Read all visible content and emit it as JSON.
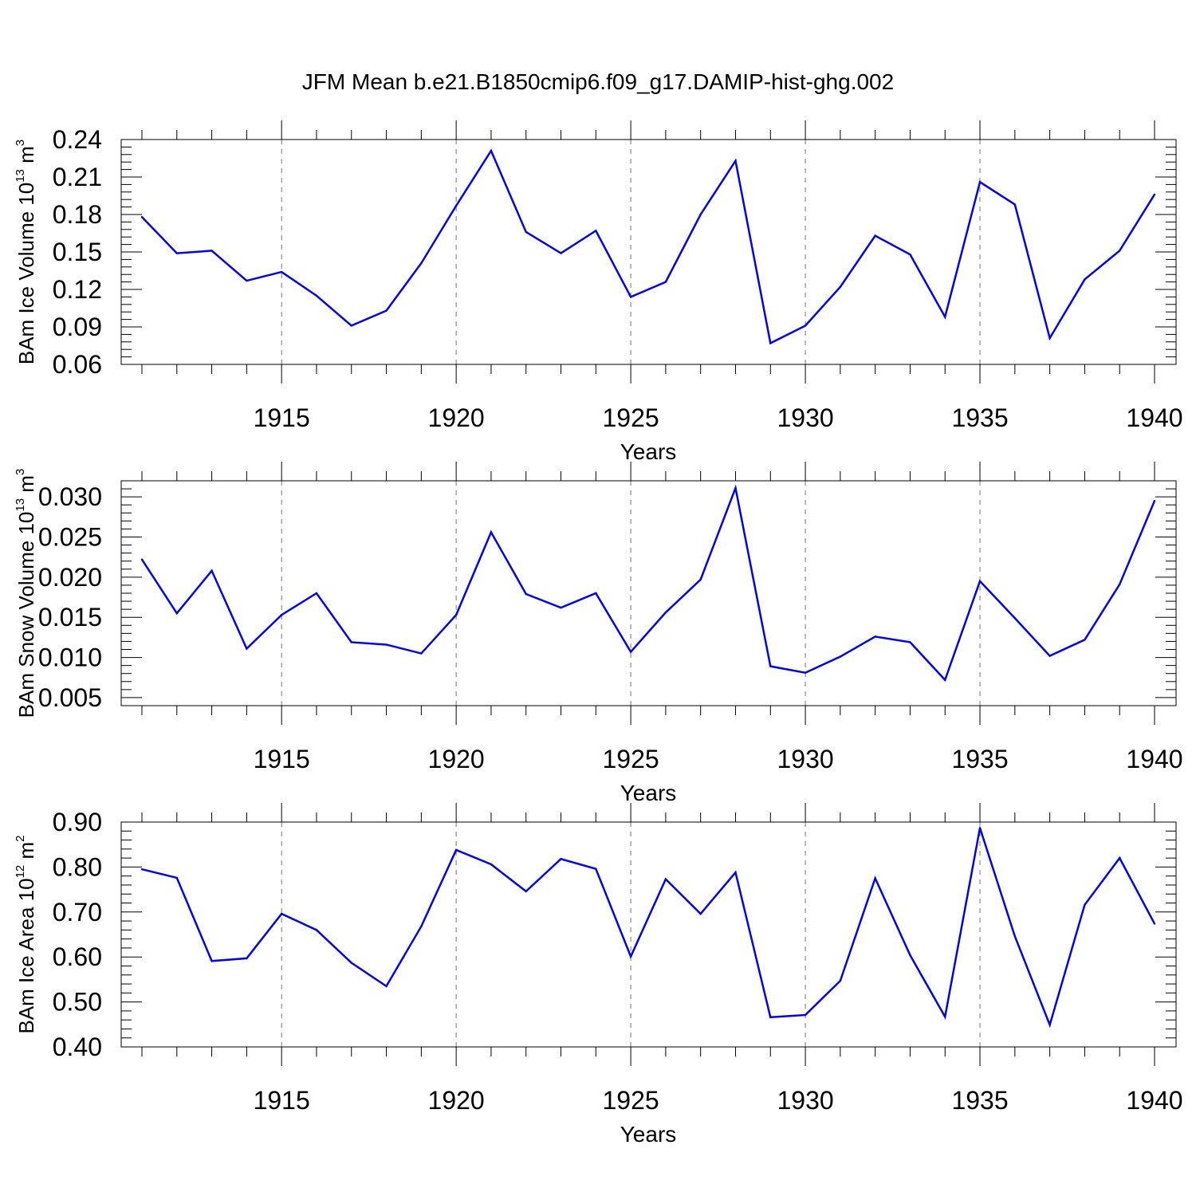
{
  "title": "JFM Mean b.e21.B1850cmip6.f09_g17.DAMIP-hist-ghg.002",
  "line_color": "#0000ff",
  "chart_data": [
    {
      "type": "line",
      "ylabel": "BAm Ice Volume 10",
      "ylabel_exp": "13",
      "ylabel_unit": " m",
      "ylabel_unit_exp": "3",
      "xlabel": "Years",
      "xlim": [
        1911,
        1940
      ],
      "ylim": [
        0.06,
        0.24
      ],
      "yticks": [
        0.06,
        0.09,
        0.12,
        0.15,
        0.18,
        0.21,
        0.24
      ],
      "ytick_labels": [
        "0.06",
        "0.09",
        "0.12",
        "0.15",
        "0.18",
        "0.21",
        "0.24"
      ],
      "xticks": [
        1915,
        1920,
        1925,
        1930,
        1935,
        1940
      ],
      "xtick_labels": [
        "1915",
        "1920",
        "1925",
        "1930",
        "1935",
        "1940"
      ],
      "x": [
        1911,
        1912,
        1913,
        1914,
        1915,
        1916,
        1917,
        1918,
        1919,
        1920,
        1921,
        1922,
        1923,
        1924,
        1925,
        1926,
        1927,
        1928,
        1929,
        1930,
        1931,
        1932,
        1933,
        1934,
        1935,
        1936,
        1937,
        1938,
        1939,
        1940
      ],
      "values": [
        0.178,
        0.149,
        0.151,
        0.127,
        0.134,
        0.115,
        0.091,
        0.103,
        0.141,
        0.187,
        0.231,
        0.166,
        0.149,
        0.167,
        0.114,
        0.126,
        0.18,
        0.223,
        0.077,
        0.091,
        0.122,
        0.163,
        0.148,
        0.098,
        0.206,
        0.188,
        0.081,
        0.128,
        0.151,
        0.196
      ]
    },
    {
      "type": "line",
      "ylabel": "BAm Snow Volume 10",
      "ylabel_exp": "13",
      "ylabel_unit": " m",
      "ylabel_unit_exp": "3",
      "xlabel": "Years",
      "xlim": [
        1911,
        1940
      ],
      "ylim": [
        0.004,
        0.032
      ],
      "yticks": [
        0.005,
        0.01,
        0.015,
        0.02,
        0.025,
        0.03
      ],
      "ytick_labels": [
        "0.005",
        "0.010",
        "0.015",
        "0.020",
        "0.025",
        "0.030"
      ],
      "xticks": [
        1915,
        1920,
        1925,
        1930,
        1935,
        1940
      ],
      "xtick_labels": [
        "1915",
        "1920",
        "1925",
        "1930",
        "1935",
        "1940"
      ],
      "x": [
        1911,
        1912,
        1913,
        1914,
        1915,
        1916,
        1917,
        1918,
        1919,
        1920,
        1921,
        1922,
        1923,
        1924,
        1925,
        1926,
        1927,
        1928,
        1929,
        1930,
        1931,
        1932,
        1933,
        1934,
        1935,
        1936,
        1937,
        1938,
        1939,
        1940
      ],
      "values": [
        0.0222,
        0.0155,
        0.0208,
        0.0111,
        0.0153,
        0.018,
        0.0119,
        0.0116,
        0.0105,
        0.0153,
        0.0256,
        0.0179,
        0.0162,
        0.018,
        0.0107,
        0.0156,
        0.0197,
        0.0311,
        0.0089,
        0.0081,
        0.0101,
        0.0126,
        0.0119,
        0.0072,
        0.0195,
        0.0149,
        0.0102,
        0.0122,
        0.0191,
        0.0295
      ]
    },
    {
      "type": "line",
      "ylabel": "BAm Ice Area 10",
      "ylabel_exp": "12",
      "ylabel_unit": " m",
      "ylabel_unit_exp": "2",
      "xlabel": "Years",
      "xlim": [
        1911,
        1940
      ],
      "ylim": [
        0.4,
        0.9
      ],
      "yticks": [
        0.4,
        0.5,
        0.6,
        0.7,
        0.8,
        0.9
      ],
      "ytick_labels": [
        "0.40",
        "0.50",
        "0.60",
        "0.70",
        "0.80",
        "0.90"
      ],
      "xticks": [
        1915,
        1920,
        1925,
        1930,
        1935,
        1940
      ],
      "xtick_labels": [
        "1915",
        "1920",
        "1925",
        "1930",
        "1935",
        "1940"
      ],
      "x": [
        1911,
        1912,
        1913,
        1914,
        1915,
        1916,
        1917,
        1918,
        1919,
        1920,
        1921,
        1922,
        1923,
        1924,
        1925,
        1926,
        1927,
        1928,
        1929,
        1930,
        1931,
        1932,
        1933,
        1934,
        1935,
        1936,
        1937,
        1938,
        1939,
        1940
      ],
      "values": [
        0.795,
        0.776,
        0.591,
        0.597,
        0.696,
        0.66,
        0.587,
        0.535,
        0.668,
        0.838,
        0.806,
        0.746,
        0.818,
        0.796,
        0.601,
        0.773,
        0.696,
        0.788,
        0.466,
        0.471,
        0.547,
        0.775,
        0.604,
        0.467,
        0.887,
        0.646,
        0.449,
        0.716,
        0.82,
        0.674
      ]
    }
  ]
}
